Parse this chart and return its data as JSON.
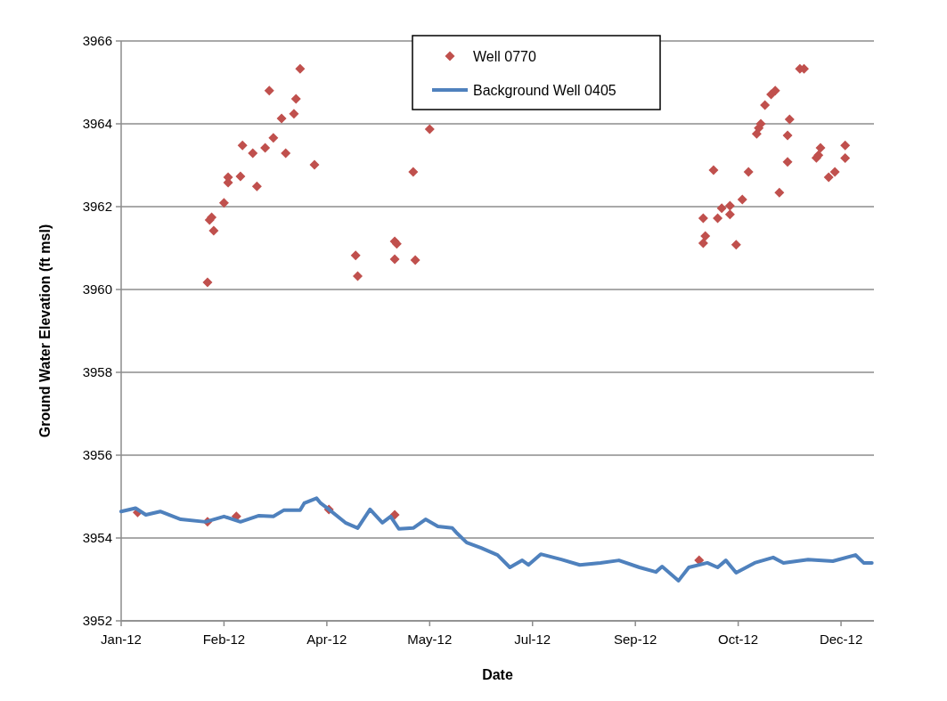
{
  "chart_data": {
    "type": "scatter",
    "xlabel": "Date",
    "ylabel": "Ground Water Elevation (ft msl)",
    "xlim": [
      "2012-01-01",
      "2013-01-01"
    ],
    "xticks": [
      {
        "value": "2012-01-01",
        "label": "Jan-12"
      },
      {
        "value": "2012-02-20",
        "label": "Feb-12"
      },
      {
        "value": "2012-04-10",
        "label": "Apr-12"
      },
      {
        "value": "2012-05-30",
        "label": "May-12"
      },
      {
        "value": "2012-07-19",
        "label": "Jul-12"
      },
      {
        "value": "2012-09-07",
        "label": "Sep-12"
      },
      {
        "value": "2012-10-27",
        "label": "Oct-12"
      },
      {
        "value": "2012-12-16",
        "label": "Dec-12"
      }
    ],
    "ylim": [
      3952,
      3966
    ],
    "yticks": [
      3952,
      3954,
      3956,
      3958,
      3960,
      3962,
      3964,
      3966
    ],
    "grid": "y",
    "legend": "top",
    "series": [
      {
        "name": "Well 0770",
        "marker": "diamond",
        "color": "#c0504d",
        "x": [
          "2012-01-09",
          "2012-02-12",
          "2012-02-12",
          "2012-02-13",
          "2012-02-14",
          "2012-02-15",
          "2012-02-20",
          "2012-02-22",
          "2012-02-22",
          "2012-02-26",
          "2012-02-28",
          "2012-02-29",
          "2012-03-05",
          "2012-03-07",
          "2012-03-11",
          "2012-03-13",
          "2012-03-15",
          "2012-03-19",
          "2012-03-21",
          "2012-03-25",
          "2012-03-26",
          "2012-03-28",
          "2012-04-04",
          "2012-04-11",
          "2012-04-24",
          "2012-04-25",
          "2012-05-13",
          "2012-05-13",
          "2012-05-13",
          "2012-05-14",
          "2012-05-22",
          "2012-05-23",
          "2012-05-30",
          "2012-10-08",
          "2012-10-10",
          "2012-10-10",
          "2012-10-11",
          "2012-10-15",
          "2012-10-17",
          "2012-10-19",
          "2012-10-23",
          "2012-10-23",
          "2012-10-26",
          "2012-10-29",
          "2012-11-01",
          "2012-11-05",
          "2012-11-06",
          "2012-11-07",
          "2012-11-09",
          "2012-11-12",
          "2012-11-14",
          "2012-11-16",
          "2012-11-20",
          "2012-11-20",
          "2012-11-21",
          "2012-11-26",
          "2012-11-28",
          "2012-12-04",
          "2012-12-05",
          "2012-12-06",
          "2012-12-10",
          "2012-12-13",
          "2012-12-18",
          "2012-12-18"
        ],
        "values": [
          3954.62,
          3960.17,
          3954.39,
          3961.68,
          3961.74,
          3961.42,
          3962.09,
          3962.58,
          3962.71,
          3954.52,
          3962.73,
          3963.48,
          3963.29,
          3962.49,
          3963.42,
          3964.8,
          3963.66,
          3964.13,
          3963.29,
          3964.24,
          3964.6,
          3965.33,
          3963.01,
          3954.69,
          3960.82,
          3960.32,
          3961.16,
          3960.73,
          3954.56,
          3961.1,
          3962.84,
          3960.71,
          3963.87,
          3953.46,
          3961.72,
          3961.12,
          3961.29,
          3962.88,
          3961.72,
          3961.96,
          3962.02,
          3961.81,
          3961.08,
          3962.17,
          3962.84,
          3963.76,
          3963.9,
          3964.0,
          3964.45,
          3964.71,
          3964.8,
          3962.34,
          3963.08,
          3963.72,
          3964.11,
          3965.33,
          3965.33,
          3963.18,
          3963.24,
          3963.42,
          3962.71,
          3962.84,
          3963.17,
          3963.48
        ]
      },
      {
        "name": "Background Well 0405",
        "type": "line",
        "marker": "none",
        "color": "#4f81bd",
        "x": [
          "2012-01-01",
          "2012-01-08",
          "2012-01-13",
          "2012-01-20",
          "2012-01-30",
          "2012-02-11",
          "2012-02-20",
          "2012-02-28",
          "2012-03-08",
          "2012-03-15",
          "2012-03-20",
          "2012-03-28",
          "2012-03-30",
          "2012-04-05",
          "2012-04-07",
          "2012-04-11",
          "2012-04-19",
          "2012-04-25",
          "2012-05-01",
          "2012-05-07",
          "2012-05-11",
          "2012-05-15",
          "2012-05-22",
          "2012-05-28",
          "2012-06-03",
          "2012-06-10",
          "2012-06-12",
          "2012-06-17",
          "2012-06-24",
          "2012-07-02",
          "2012-07-08",
          "2012-07-14",
          "2012-07-17",
          "2012-07-23",
          "2012-08-02",
          "2012-08-11",
          "2012-08-21",
          "2012-08-30",
          "2012-09-09",
          "2012-09-17",
          "2012-09-20",
          "2012-09-28",
          "2012-10-03",
          "2012-10-12",
          "2012-10-17",
          "2012-10-21",
          "2012-10-26",
          "2012-11-04",
          "2012-11-13",
          "2012-11-18",
          "2012-11-30",
          "2012-12-12",
          "2012-12-23",
          "2012-12-27",
          "2012-12-31"
        ],
        "values": [
          3954.64,
          3954.72,
          3954.56,
          3954.64,
          3954.45,
          3954.39,
          3954.52,
          3954.39,
          3954.54,
          3954.52,
          3954.67,
          3954.67,
          3954.84,
          3954.96,
          3954.84,
          3954.69,
          3954.37,
          3954.24,
          3954.69,
          3954.37,
          3954.52,
          3954.22,
          3954.24,
          3954.45,
          3954.28,
          3954.24,
          3954.13,
          3953.89,
          3953.76,
          3953.59,
          3953.29,
          3953.46,
          3953.35,
          3953.61,
          3953.48,
          3953.35,
          3953.4,
          3953.46,
          3953.29,
          3953.18,
          3953.31,
          3952.97,
          3953.29,
          3953.4,
          3953.29,
          3953.46,
          3953.16,
          3953.4,
          3953.53,
          3953.4,
          3953.48,
          3953.44,
          3953.59,
          3953.4,
          3953.4
        ]
      }
    ]
  }
}
